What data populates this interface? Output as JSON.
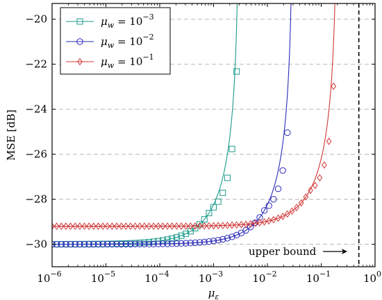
{
  "chart_data": {
    "type": "line",
    "xlabel": "μ_ε",
    "ylabel": "MSE [dB]",
    "x_scale": "log",
    "xlim": [
      1e-06,
      1
    ],
    "ylim": [
      -31.0,
      -19.3
    ],
    "x_ticks": [
      1e-06,
      1e-05,
      0.0001,
      0.001,
      0.01,
      0.1,
      1
    ],
    "x_tick_labels": [
      {
        "base": "10",
        "exp": "−6"
      },
      {
        "base": "10",
        "exp": "−5"
      },
      {
        "base": "10",
        "exp": "−4"
      },
      {
        "base": "10",
        "exp": "−3"
      },
      {
        "base": "10",
        "exp": "−2"
      },
      {
        "base": "10",
        "exp": "−1"
      },
      {
        "base": "10",
        "exp": "0"
      }
    ],
    "y_ticks": [
      -30,
      -28,
      -26,
      -24,
      -22,
      -20
    ],
    "y_tick_labels": [
      "−30",
      "−28",
      "−26",
      "−24",
      "−22",
      "−20"
    ],
    "grid": "horizontal dashed",
    "legend_position": "top-left",
    "upper_bound": 0.5,
    "upper_bound_label": "upper bound",
    "series": [
      {
        "name_math": {
          "base": "μ",
          "sub": "w",
          "rhs": "= 10",
          "exp": "−3"
        },
        "color": "#1a9a8a",
        "marker": "square",
        "floor": -30.0,
        "asymptote": 0.003,
        "samples": [
          [
            1e-06,
            -30.0
          ],
          [
            1e-05,
            -30.0
          ],
          [
            0.0001,
            -29.9
          ],
          [
            0.0003,
            -29.6
          ],
          [
            0.0006,
            -29.1
          ],
          [
            0.001,
            -28.1
          ],
          [
            0.0015,
            -26.3
          ],
          [
            0.002,
            -24.0
          ],
          [
            0.0025,
            -21.0
          ],
          [
            0.0028,
            -19.5
          ]
        ]
      },
      {
        "name_math": {
          "base": "μ",
          "sub": "w",
          "rhs": "= 10",
          "exp": "−2"
        },
        "color": "#2a2ab8",
        "marker": "circle",
        "floor": -30.0,
        "asymptote": 0.03,
        "samples": [
          [
            1e-06,
            -30.0
          ],
          [
            0.0001,
            -30.0
          ],
          [
            0.001,
            -29.9
          ],
          [
            0.003,
            -29.6
          ],
          [
            0.006,
            -29.0
          ],
          [
            0.01,
            -27.8
          ],
          [
            0.015,
            -25.4
          ],
          [
            0.02,
            -22.3
          ],
          [
            0.025,
            -19.6
          ]
        ]
      },
      {
        "name_math": {
          "base": "μ",
          "sub": "w",
          "rhs": "= 10",
          "exp": "−1"
        },
        "color": "#d03535",
        "marker": "diamond",
        "floor": -29.2,
        "asymptote": 0.2,
        "samples": [
          [
            1e-06,
            -29.2
          ],
          [
            0.001,
            -29.2
          ],
          [
            0.01,
            -29.0
          ],
          [
            0.03,
            -28.6
          ],
          [
            0.06,
            -27.8
          ],
          [
            0.1,
            -26.2
          ],
          [
            0.14,
            -23.2
          ],
          [
            0.17,
            -20.3
          ]
        ]
      }
    ]
  }
}
